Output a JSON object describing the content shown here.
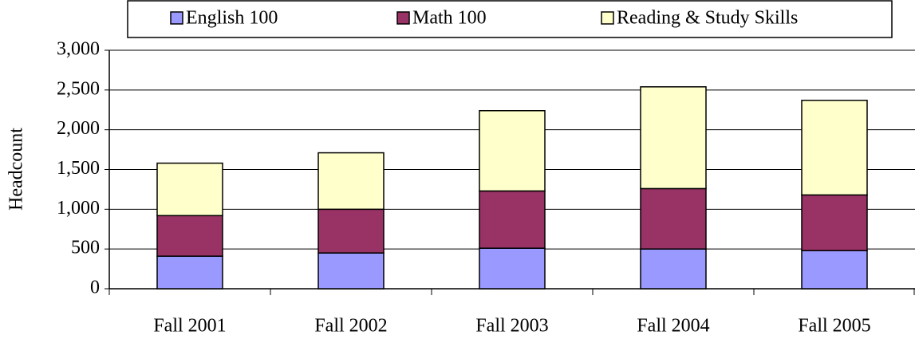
{
  "chart_data": {
    "type": "stacked_bar",
    "y_label": "Headcount",
    "categories": [
      "Fall 2001",
      "Fall 2002",
      "Fall 2003",
      "Fall 2004",
      "Fall 2005"
    ],
    "series": [
      {
        "name": "English 100",
        "color": "#9999ff",
        "values": [
          410,
          450,
          510,
          500,
          480
        ]
      },
      {
        "name": "Math 100",
        "color": "#993366",
        "values": [
          510,
          550,
          720,
          760,
          700
        ]
      },
      {
        "name": "Reading & Study Skills",
        "color": "#ffffcc",
        "values": [
          660,
          710,
          1010,
          1280,
          1190
        ]
      }
    ],
    "ylim": [
      0,
      3000
    ],
    "yticks": [
      0,
      500,
      {
        "value": 1000,
        "label": "1,000"
      },
      {
        "value": 1500,
        "label": "1,500"
      },
      {
        "value": 2000,
        "label": "2,000"
      },
      {
        "value": 2500,
        "label": "2,500"
      },
      {
        "value": 3000,
        "label": "3,000"
      }
    ],
    "grid": true
  }
}
